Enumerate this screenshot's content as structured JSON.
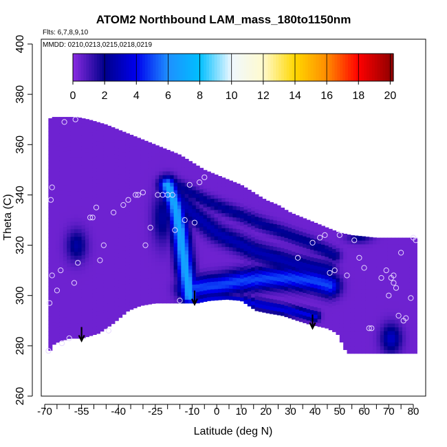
{
  "chart_data": {
    "type": "heatmap",
    "title": "ATOM2 Northbound LAM_mass_180to1150nm",
    "annotations": [
      "Flts: 6,7,8,9,10",
      "MMDD: 0210,0213,0215,0218,0219"
    ],
    "xlabel": "Latitude (deg N)",
    "ylabel": "Theta (C)",
    "xlim": [
      -70,
      80
    ],
    "ylim": [
      260,
      400
    ],
    "x_ticks_labeled": [
      -70,
      -55,
      -40,
      -25,
      -10,
      0,
      10,
      20,
      30,
      40,
      50,
      60,
      70,
      80
    ],
    "x_ticks_minor": [
      -65,
      -60,
      -50,
      -45,
      -35,
      -30,
      -20,
      -15,
      -5,
      5,
      15,
      25,
      35,
      45,
      55,
      65,
      75
    ],
    "y_ticks": [
      260,
      280,
      300,
      320,
      340,
      360,
      380,
      400
    ],
    "colorbar": {
      "range": [
        0,
        20.2
      ],
      "ticks": [
        0,
        2,
        4,
        6,
        8,
        10,
        12,
        14,
        16,
        18,
        20
      ],
      "stops": [
        {
          "value": 0,
          "color": "#8a2be2"
        },
        {
          "value": 2,
          "color": "#00008b"
        },
        {
          "value": 4,
          "color": "#0000ee"
        },
        {
          "value": 6,
          "color": "#1e90ff"
        },
        {
          "value": 8,
          "color": "#00bfff"
        },
        {
          "value": 10,
          "color": "#f0f8ff"
        },
        {
          "value": 12,
          "color": "#fffacd"
        },
        {
          "value": 14,
          "color": "#ffd700"
        },
        {
          "value": 16,
          "color": "#ff8c00"
        },
        {
          "value": 18,
          "color": "#ff0000"
        },
        {
          "value": 20.2,
          "color": "#8b0000"
        }
      ]
    },
    "coverage": {
      "top_boundary": [
        [
          -68.5,
          370
        ],
        [
          -67,
          371
        ],
        [
          -62,
          371
        ],
        [
          -57,
          371
        ],
        [
          -52,
          370
        ],
        [
          -45,
          368
        ],
        [
          -40,
          366
        ],
        [
          -35,
          364
        ],
        [
          -30,
          362
        ],
        [
          -25,
          360
        ],
        [
          -20,
          358
        ],
        [
          -15,
          356
        ],
        [
          -10,
          353
        ],
        [
          -5,
          350
        ],
        [
          0,
          348
        ],
        [
          5,
          346
        ],
        [
          10,
          344
        ],
        [
          15,
          341
        ],
        [
          20,
          338
        ],
        [
          25,
          336
        ],
        [
          30,
          333
        ],
        [
          35,
          331
        ],
        [
          40,
          329
        ],
        [
          45,
          327
        ],
        [
          50,
          325
        ],
        [
          55,
          324
        ],
        [
          60,
          323.5
        ],
        [
          65,
          323
        ],
        [
          70,
          323
        ],
        [
          75,
          323
        ],
        [
          80,
          323
        ],
        [
          81,
          323
        ]
      ],
      "bottom_boundary": [
        [
          -68.5,
          277
        ],
        [
          -66,
          281
        ],
        [
          -60,
          283
        ],
        [
          -55,
          283
        ],
        [
          -48,
          285
        ],
        [
          -42,
          289
        ],
        [
          -36,
          294
        ],
        [
          -31,
          296
        ],
        [
          -25,
          297
        ],
        [
          -20,
          297
        ],
        [
          -15,
          297
        ],
        [
          -8,
          297
        ],
        [
          -3,
          298
        ],
        [
          4,
          298.5
        ],
        [
          10,
          298
        ],
        [
          16,
          294
        ],
        [
          21,
          293
        ],
        [
          27,
          292
        ],
        [
          33,
          290
        ],
        [
          38,
          288.5
        ],
        [
          45,
          287
        ],
        [
          49,
          285
        ],
        [
          53,
          277
        ],
        [
          60,
          277
        ],
        [
          70,
          277
        ],
        [
          78,
          277
        ],
        [
          81,
          277
        ]
      ],
      "background_value": 0.4
    },
    "features": [
      {
        "kind": "ridge",
        "polyline": [
          [
            -20,
            344
          ],
          [
            -17,
            336
          ],
          [
            -15,
            326
          ],
          [
            -13,
            312
          ],
          [
            -11,
            300
          ]
        ],
        "width": 3.2,
        "value": 7.0
      },
      {
        "kind": "band",
        "polyline": [
          [
            -12,
            303
          ],
          [
            0,
            304
          ],
          [
            10,
            306
          ],
          [
            20,
            307
          ],
          [
            30,
            307
          ],
          [
            40,
            306
          ],
          [
            46,
            304
          ]
        ],
        "width": 4.0,
        "value": 5.0
      },
      {
        "kind": "ridge",
        "polyline": [
          [
            -19,
            343
          ],
          [
            -10,
            333
          ],
          [
            0,
            325
          ],
          [
            15,
            318
          ],
          [
            30,
            313
          ],
          [
            45,
            310
          ]
        ],
        "width": 3.5,
        "value": 2.8
      },
      {
        "kind": "ridge",
        "polyline": [
          [
            -20,
            346
          ],
          [
            -5,
            338
          ],
          [
            10,
            332
          ],
          [
            25,
            326
          ],
          [
            38,
            321
          ],
          [
            48,
            316
          ]
        ],
        "width": 2.5,
        "value": 2.3
      },
      {
        "kind": "ridge",
        "polyline": [
          [
            -11,
            297
          ],
          [
            -7,
            298
          ],
          [
            0,
            298.5
          ],
          [
            10,
            298
          ],
          [
            20,
            296
          ],
          [
            30,
            294
          ],
          [
            40,
            292
          ]
        ],
        "width": 2.0,
        "value": 3.8
      },
      {
        "kind": "blob",
        "center": [
          -57,
          320
        ],
        "rx": 4.0,
        "ry": 6.0,
        "value": 2.5
      },
      {
        "kind": "blob",
        "center": [
          -22,
          331
        ],
        "rx": 4.0,
        "ry": 10.0,
        "value": 2.4
      },
      {
        "kind": "blob",
        "center": [
          71,
          283
        ],
        "rx": 4.0,
        "ry": 5.5,
        "value": 3.2
      },
      {
        "kind": "blob",
        "center": [
          58,
          323
        ],
        "rx": 5.0,
        "ry": 2.0,
        "value": 2.0
      }
    ],
    "sample_points": [
      [
        -67,
        343
      ],
      [
        -67.5,
        338
      ],
      [
        -68,
        297
      ],
      [
        -68.5,
        278
      ],
      [
        -67,
        308
      ],
      [
        -65,
        302
      ],
      [
        -63,
        281
      ],
      [
        -60,
        283
      ],
      [
        -58,
        305
      ],
      [
        -56.5,
        313
      ],
      [
        -63.5,
        310
      ],
      [
        -62,
        369
      ],
      [
        -57.5,
        370
      ],
      [
        -51.5,
        331
      ],
      [
        -50.5,
        331
      ],
      [
        -49,
        335
      ],
      [
        -47.5,
        314
      ],
      [
        -46,
        320
      ],
      [
        -44,
        286
      ],
      [
        -42,
        333
      ],
      [
        -38,
        336
      ],
      [
        -36,
        338
      ],
      [
        -33,
        340
      ],
      [
        -32,
        340
      ],
      [
        -30,
        341
      ],
      [
        -29,
        320
      ],
      [
        -27,
        327
      ],
      [
        -24,
        340
      ],
      [
        -22,
        340
      ],
      [
        -20,
        340
      ],
      [
        -18,
        340
      ],
      [
        -17,
        326
      ],
      [
        -15,
        298
      ],
      [
        -13,
        330
      ],
      [
        -11,
        344
      ],
      [
        -7,
        345
      ],
      [
        -9,
        329
      ],
      [
        -5,
        347
      ],
      [
        33,
        315
      ],
      [
        39,
        321
      ],
      [
        42,
        323
      ],
      [
        44,
        324
      ],
      [
        46,
        309
      ],
      [
        48,
        310
      ],
      [
        50,
        324
      ],
      [
        53,
        308
      ],
      [
        56,
        322
      ],
      [
        58,
        315
      ],
      [
        60,
        311
      ],
      [
        62,
        287
      ],
      [
        63,
        287
      ],
      [
        67,
        307
      ],
      [
        69,
        310
      ],
      [
        71,
        307
      ],
      [
        72,
        305
      ],
      [
        73,
        303
      ],
      [
        70,
        300
      ],
      [
        74,
        292
      ],
      [
        76,
        290
      ],
      [
        77,
        291
      ],
      [
        79,
        299
      ],
      [
        81,
        322
      ],
      [
        80,
        323
      ],
      [
        75,
        317
      ],
      [
        72,
        308
      ]
    ],
    "arrows": [
      [
        -55,
        282
      ],
      [
        -9,
        296.5
      ],
      [
        39,
        287
      ]
    ]
  }
}
